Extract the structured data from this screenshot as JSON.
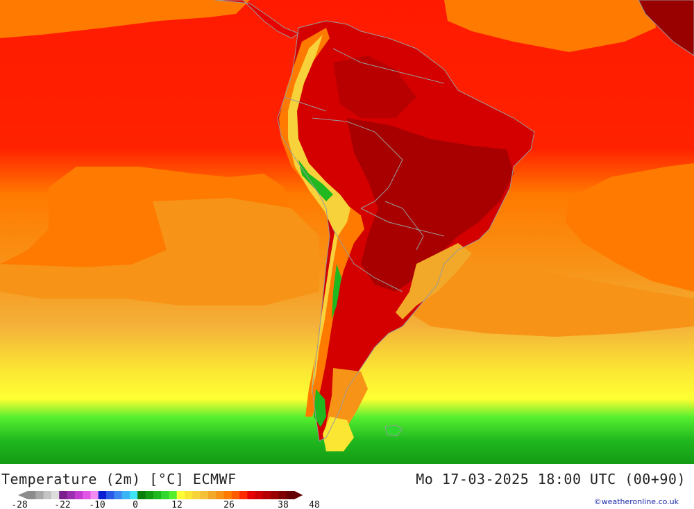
{
  "header": {
    "title_left": "Temperature (2m) [°C] ECMWF",
    "title_right": "Mo 17-03-2025 18:00 UTC (00+90)"
  },
  "credit": "©weatheronline.co.uk",
  "scale": {
    "ticks": [
      "-28",
      "-22",
      "-10",
      "0",
      "12",
      "26",
      "38",
      "48"
    ],
    "colors": [
      "#8c8c8c",
      "#a8a8a8",
      "#c4c4c4",
      "#dcdcdc",
      "#7a1f8c",
      "#9b2fb0",
      "#c23cd0",
      "#e055e6",
      "#f28cf2",
      "#0a1ed2",
      "#2b5be6",
      "#3d87f0",
      "#39b4f5",
      "#3fe3f3",
      "#0a7d0a",
      "#149b14",
      "#1fb81f",
      "#2fd72f",
      "#55ee2f",
      "#ffff33",
      "#fbe733",
      "#f7d23a",
      "#f4c03a",
      "#f2a828",
      "#f79418",
      "#ff7a00",
      "#ff5a00",
      "#ff2a00",
      "#e60000",
      "#cc0000",
      "#b30000",
      "#990000",
      "#800000",
      "#660000"
    ],
    "accent_color": "#ff0000"
  }
}
